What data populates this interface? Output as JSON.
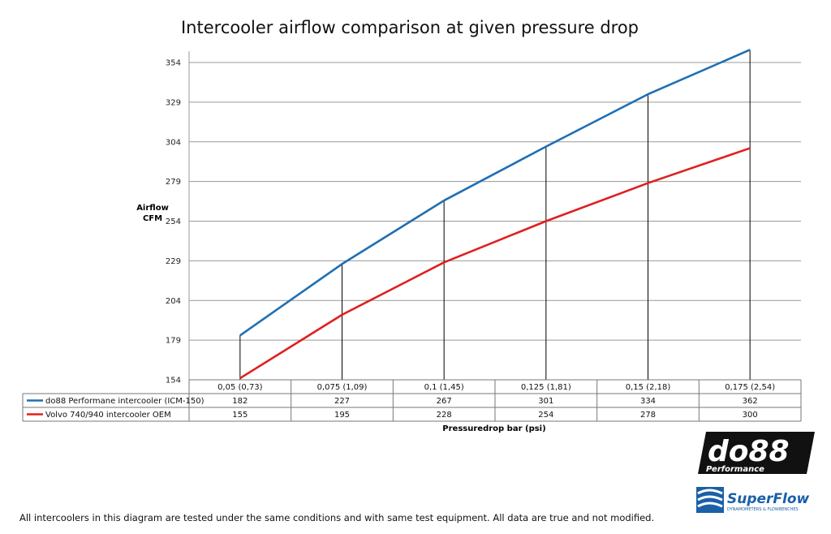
{
  "chart_data": {
    "type": "line",
    "title": "Intercooler airflow comparison at given pressure drop",
    "ylabel_line1": "Airflow",
    "ylabel_line2": "CFM",
    "xlabel": "Pressuredrop bar (psi)",
    "categories": [
      "0,05 (0,73)",
      "0,075 (1,09)",
      "0,1 (1,45)",
      "0,125 (1,81)",
      "0,15 (2,18)",
      "0,175 (2,54)"
    ],
    "y_ticks": [
      154,
      179,
      204,
      229,
      254,
      279,
      304,
      329,
      354
    ],
    "ylim": [
      154,
      354
    ],
    "grid": true,
    "legend": "data-table",
    "series": [
      {
        "name": "do88 Performane intercooler (ICM-150)",
        "color": "#1f6fb4",
        "values": [
          182,
          227,
          267,
          301,
          334,
          362
        ]
      },
      {
        "name": "Volvo 740/940 intercooler OEM",
        "color": "#e01f1f",
        "values": [
          155,
          195,
          228,
          254,
          278,
          300
        ]
      }
    ]
  },
  "footnote": "All intercoolers in this diagram are tested under the same conditions and with same test equipment. All data are true and not modified.",
  "logos": {
    "do88_main": "do88",
    "do88_sub": "Performance",
    "superflow_main": "SuperFlow",
    "superflow_sub": "DYNAMOMETERS & FLOWBENCHES"
  },
  "colors": {
    "grid": "#999999",
    "drop_line": "#000000"
  }
}
